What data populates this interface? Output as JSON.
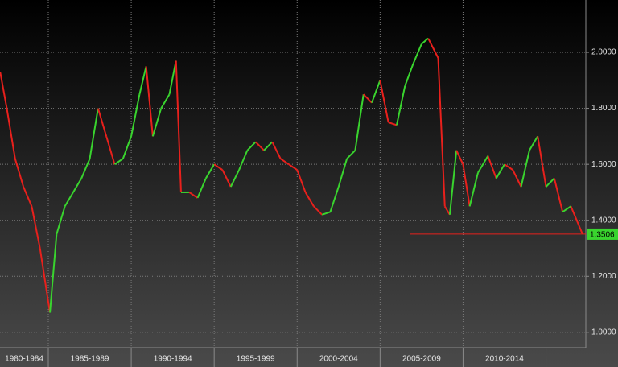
{
  "chart_data": {
    "type": "line",
    "xlim": [
      1982.09,
      2017.4
    ],
    "ylim": [
      0.945,
      2.187
    ],
    "xticks": [
      1985,
      1990,
      1995,
      2000,
      2005,
      2010,
      2015
    ],
    "categories": [
      "1980-1984",
      "1985-1989",
      "1990-1994",
      "1995-1999",
      "2000-2004",
      "2005-2009",
      "2010-2014"
    ],
    "yticks": [
      {
        "value": 1.0,
        "label": "1.0000"
      },
      {
        "value": 1.2,
        "label": "1.2000"
      },
      {
        "value": 1.4,
        "label": "1.4000"
      },
      {
        "value": 1.6,
        "label": "1.6000"
      },
      {
        "value": 1.8,
        "label": "1.8000"
      },
      {
        "value": 2.0,
        "label": "2.0000"
      }
    ],
    "grid": true,
    "up_color": "#39d42e",
    "down_color": "#e8201c",
    "x": [
      1982.1,
      1982.5,
      1983,
      1983.5,
      1984,
      1984.5,
      1985.1,
      1985.5,
      1986,
      1986.5,
      1987,
      1987.5,
      1988,
      1988.5,
      1989,
      1989.5,
      1990,
      1990.5,
      1990.9,
      1991.3,
      1991.8,
      1992.3,
      1992.7,
      1993,
      1993.5,
      1994,
      1994.5,
      1995,
      1995.5,
      1996,
      1996.5,
      1997,
      1997.5,
      1998,
      1998.5,
      1999,
      1999.5,
      2000,
      2000.5,
      2001,
      2001.5,
      2002,
      2002.5,
      2003,
      2003.5,
      2004,
      2004.5,
      2005,
      2005.5,
      2006,
      2006.5,
      2007,
      2007.5,
      2007.9,
      2008.5,
      2008.9,
      2009.2,
      2009.6,
      2010,
      2010.4,
      2010.9,
      2011.5,
      2012,
      2012.5,
      2013,
      2013.5,
      2014,
      2014.5,
      2015,
      2015.5,
      2016,
      2016.5,
      2017.2
    ],
    "values": [
      1.93,
      1.8,
      1.62,
      1.52,
      1.45,
      1.3,
      1.07,
      1.35,
      1.45,
      1.5,
      1.55,
      1.62,
      1.8,
      1.7,
      1.6,
      1.62,
      1.7,
      1.85,
      1.95,
      1.7,
      1.8,
      1.85,
      1.97,
      1.5,
      1.5,
      1.48,
      1.55,
      1.6,
      1.58,
      1.52,
      1.58,
      1.65,
      1.68,
      1.65,
      1.68,
      1.62,
      1.6,
      1.58,
      1.5,
      1.45,
      1.42,
      1.43,
      1.52,
      1.62,
      1.65,
      1.85,
      1.82,
      1.9,
      1.75,
      1.74,
      1.88,
      1.96,
      2.03,
      2.05,
      1.98,
      1.45,
      1.42,
      1.65,
      1.6,
      1.45,
      1.57,
      1.63,
      1.55,
      1.6,
      1.58,
      1.52,
      1.65,
      1.7,
      1.52,
      1.55,
      1.43,
      1.45,
      1.3506
    ],
    "last_value": {
      "value": 1.3506,
      "label": "1.3506",
      "from_x": 2006.8
    }
  }
}
